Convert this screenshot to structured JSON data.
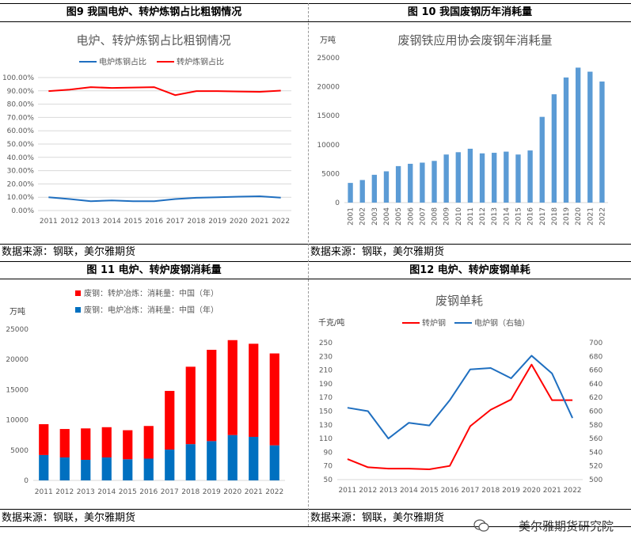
{
  "panels": {
    "p9": {
      "title": "图9  我国电炉、转炉炼钢占比粗钢情况",
      "source": "数据来源：钢联，美尔雅期货"
    },
    "p10": {
      "title": "图 10  我国废钢历年消耗量",
      "source": "数据来源：钢联，美尔雅期货"
    },
    "p11": {
      "title": "图 11  电炉、转炉废钢消耗量",
      "source": "数据来源：钢联，美尔雅期货"
    },
    "p12": {
      "title": "图12     电炉、转炉废钢单耗",
      "source": "数据来源：钢联，美尔雅期货"
    }
  },
  "watermark": "美尔雅期货研究院",
  "colors": {
    "blue": "#1f6fc0",
    "red": "#ff0000",
    "bar10": "#5b9bd5",
    "bar11blue": "#0070c0",
    "grid": "#d9d9d9"
  },
  "chart_data": [
    {
      "id": "c9",
      "type": "line",
      "title": "电炉、转炉炼钢占比粗钢情况",
      "categories": [
        "2011",
        "2012",
        "2013",
        "2014",
        "2015",
        "2016",
        "2017",
        "2018",
        "2019",
        "2020",
        "2021",
        "2022"
      ],
      "series": [
        {
          "name": "电炉炼钢占比",
          "color": "#1f6fc0",
          "values": [
            10.0,
            8.6,
            7.0,
            7.6,
            7.0,
            7.0,
            8.6,
            9.6,
            10.0,
            10.4,
            10.7,
            9.7
          ]
        },
        {
          "name": "转炉炼钢占比",
          "color": "#ff0000",
          "values": [
            89.8,
            90.9,
            92.8,
            92.2,
            92.5,
            92.8,
            86.8,
            89.8,
            89.8,
            89.5,
            89.3,
            90.2
          ]
        }
      ],
      "ylim": [
        0,
        100
      ],
      "yticks": [
        "0.00%",
        "10.00%",
        "20.00%",
        "30.00%",
        "40.00%",
        "50.00%",
        "60.00%",
        "70.00%",
        "80.00%",
        "90.00%",
        "100.00%"
      ],
      "legend": "top"
    },
    {
      "id": "c10",
      "type": "bar",
      "title": "废钢铁应用协会废钢年消耗量",
      "ylabel": "万吨",
      "categories": [
        "2001",
        "2002",
        "2003",
        "2004",
        "2005",
        "2006",
        "2007",
        "2008",
        "2009",
        "2010",
        "2011",
        "2012",
        "2013",
        "2014",
        "2015",
        "2016",
        "2017",
        "2018",
        "2019",
        "2020",
        "2021",
        "2022"
      ],
      "values": [
        3400,
        3900,
        4800,
        5400,
        6300,
        6700,
        6900,
        7200,
        8300,
        8700,
        9300,
        8500,
        8600,
        8800,
        8300,
        9000,
        14800,
        18700,
        21600,
        23300,
        22600,
        20900
      ],
      "ylim": [
        0,
        25000
      ],
      "yticks": [
        "0",
        "5000",
        "10000",
        "15000",
        "20000",
        "25000"
      ]
    },
    {
      "id": "c11",
      "type": "bar",
      "stacked": true,
      "ylabel": "万吨",
      "categories": [
        "2011",
        "2012",
        "2013",
        "2014",
        "2015",
        "2016",
        "2017",
        "2018",
        "2019",
        "2020",
        "2021",
        "2022"
      ],
      "series": [
        {
          "name": "废钢：电炉冶炼：消耗量：中国（年）",
          "color": "#0070c0",
          "values": [
            4200,
            3800,
            3400,
            3800,
            3500,
            3600,
            5100,
            6000,
            6500,
            7500,
            7200,
            5800
          ]
        },
        {
          "name": "废钢：转炉冶炼：消耗量：中国（年）",
          "color": "#ff0000",
          "values": [
            5100,
            4700,
            5200,
            5000,
            4800,
            5400,
            9700,
            12800,
            15100,
            15700,
            15400,
            15200
          ]
        }
      ],
      "ylim": [
        0,
        25000
      ],
      "yticks": [
        "0",
        "5000",
        "10000",
        "15000",
        "20000",
        "25000"
      ],
      "legend": "top"
    },
    {
      "id": "c12",
      "type": "line",
      "title": "废钢单耗",
      "ylabel": "千克/吨",
      "categories": [
        "2011",
        "2012",
        "2013",
        "2014",
        "2015",
        "2016",
        "2017",
        "2018",
        "2019",
        "2020",
        "2021",
        "2022"
      ],
      "series": [
        {
          "name": "转炉钢",
          "color": "#ff0000",
          "axis": "left",
          "values": [
            80,
            68,
            66,
            66,
            65,
            70,
            128,
            152,
            167,
            218,
            166,
            166
          ]
        },
        {
          "name": "电炉钢（右轴）",
          "color": "#1f6fc0",
          "axis": "right",
          "values": [
            605,
            600,
            560,
            583,
            579,
            616,
            661,
            663,
            648,
            681,
            655,
            590
          ]
        }
      ],
      "ylim_left": [
        50,
        250
      ],
      "ylim_right": [
        500,
        700
      ],
      "yticks_left": [
        "50",
        "70",
        "90",
        "110",
        "130",
        "150",
        "170",
        "190",
        "210",
        "230",
        "250"
      ],
      "yticks_right": [
        "500",
        "520",
        "540",
        "560",
        "580",
        "600",
        "620",
        "640",
        "660",
        "680",
        "700"
      ],
      "legend": "top"
    }
  ]
}
